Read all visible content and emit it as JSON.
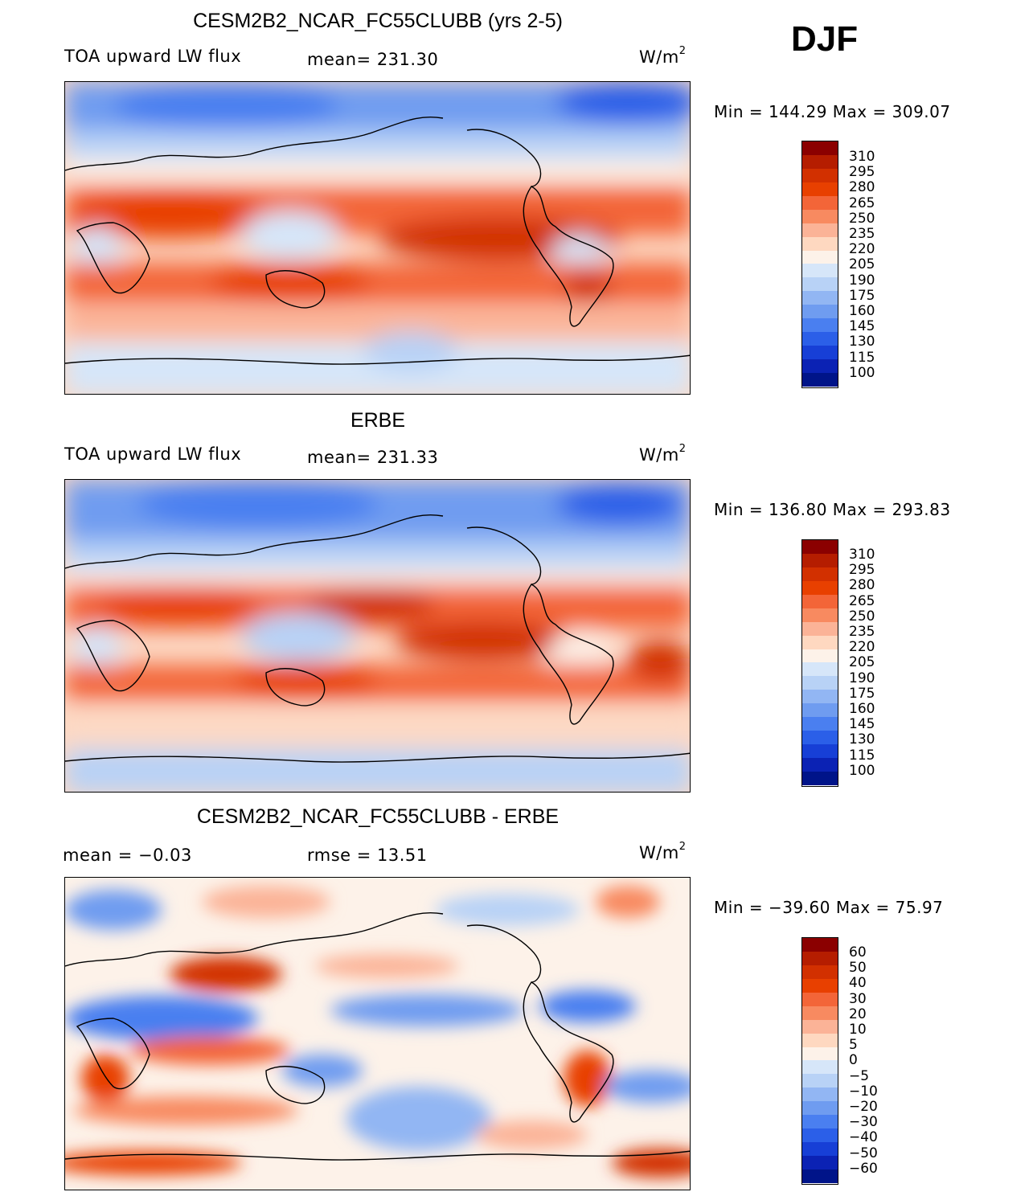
{
  "season": "DJF",
  "panels": [
    {
      "title": "CESM2B2_NCAR_FC55CLUBB (yrs 2-5)",
      "left_label": "TOA upward LW flux",
      "center_label": "mean= 231.30",
      "units": "W/m",
      "units_sup": "2",
      "minmax": "Min  =  144.29  Max  =  309.07",
      "colorbar_labels": [
        "310",
        "295",
        "280",
        "265",
        "250",
        "235",
        "220",
        "205",
        "190",
        "175",
        "160",
        "145",
        "130",
        "115",
        "100"
      ],
      "colorbar_colors": [
        "#8b0000",
        "#b51d00",
        "#d23000",
        "#e84000",
        "#f36538",
        "#f88a60",
        "#fbb397",
        "#fed8c0",
        "#fdf2e9",
        "#d6e6f9",
        "#b8d2f6",
        "#92b6f3",
        "#6f9cf0",
        "#4a7ff0",
        "#2b5fe8",
        "#173fd6",
        "#0b22b4",
        "#001489"
      ]
    },
    {
      "title": "ERBE",
      "left_label": "TOA upward LW flux",
      "center_label": "mean= 231.33",
      "units": "W/m",
      "units_sup": "2",
      "minmax": "Min  =  136.80  Max  =  293.83",
      "colorbar_labels": [
        "310",
        "295",
        "280",
        "265",
        "250",
        "235",
        "220",
        "205",
        "190",
        "175",
        "160",
        "145",
        "130",
        "115",
        "100"
      ],
      "colorbar_colors": [
        "#8b0000",
        "#b51d00",
        "#d23000",
        "#e84000",
        "#f36538",
        "#f88a60",
        "#fbb397",
        "#fed8c0",
        "#fdf2e9",
        "#d6e6f9",
        "#b8d2f6",
        "#92b6f3",
        "#6f9cf0",
        "#4a7ff0",
        "#2b5fe8",
        "#173fd6",
        "#0b22b4",
        "#001489"
      ]
    },
    {
      "title": "CESM2B2_NCAR_FC55CLUBB - ERBE",
      "left_label": "mean  =   −0.03",
      "center_label": "rmse  =    13.51",
      "units": "W/m",
      "units_sup": "2",
      "minmax": "Min  =  −39.60  Max  =    75.97",
      "colorbar_labels": [
        "60",
        "50",
        "40",
        "30",
        "20",
        "10",
        "5",
        "0",
        "−5",
        "−10",
        "−20",
        "−30",
        "−40",
        "−50",
        "−60"
      ],
      "colorbar_colors": [
        "#8b0000",
        "#b51d00",
        "#d23000",
        "#e84000",
        "#f36538",
        "#f88a60",
        "#fbb397",
        "#fed8c0",
        "#fdf2e9",
        "#d6e6f9",
        "#b8d2f6",
        "#92b6f3",
        "#6f9cf0",
        "#4a7ff0",
        "#2b5fe8",
        "#173fd6",
        "#0b22b4",
        "#001489"
      ]
    }
  ]
}
